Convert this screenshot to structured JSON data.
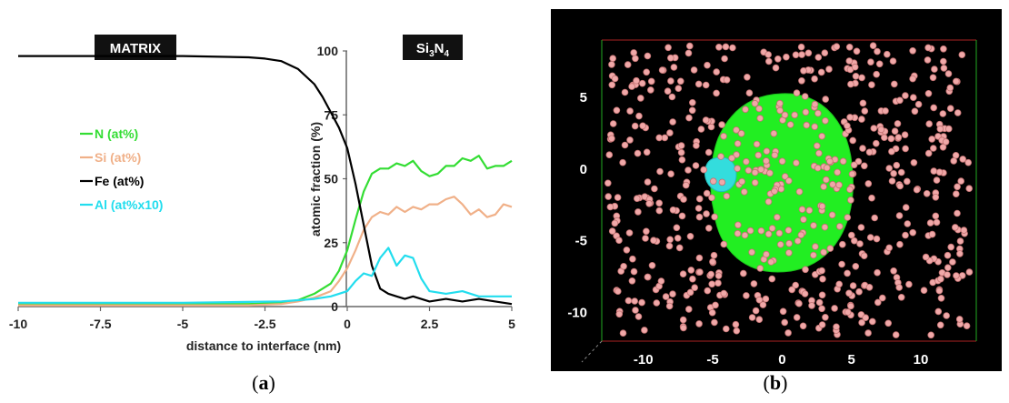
{
  "chart_data": [
    {
      "panel": "(a)",
      "type": "line",
      "xlabel": "distance to interface (nm)",
      "ylabel": "atomic fraction (%)",
      "xlim": [
        -10,
        5
      ],
      "ylim": [
        0,
        100
      ],
      "x_ticks": [
        "-10",
        "-7.5",
        "-5",
        "-2.5",
        "0",
        "2.5",
        "5"
      ],
      "y_ticks": [
        "0",
        "25",
        "50",
        "75",
        "100"
      ],
      "grid": false,
      "legend_position": "left",
      "region_labels": {
        "left": "MATRIX",
        "right_main": "Si",
        "right_sub1": "3",
        "right_mid": "N",
        "right_sub2": "4"
      },
      "series": [
        {
          "name": "N (at%)",
          "color": "#33dd33",
          "x": [
            -10,
            -5,
            -3,
            -2,
            -1.5,
            -1,
            -0.5,
            -0.25,
            0,
            0.25,
            0.5,
            0.75,
            1,
            1.25,
            1.5,
            1.75,
            2,
            2.25,
            2.5,
            2.75,
            3,
            3.25,
            3.5,
            3.75,
            4,
            4.25,
            4.5,
            4.75,
            5
          ],
          "y": [
            1,
            1,
            1,
            1.5,
            2.5,
            5,
            9,
            14,
            22,
            34,
            45,
            52,
            54,
            54,
            56,
            55,
            57,
            53,
            51,
            52,
            55,
            55,
            58,
            57,
            59,
            54,
            55,
            55,
            57
          ]
        },
        {
          "name": "Si (at%)",
          "color": "#f0b088",
          "x": [
            -10,
            -5,
            -3,
            -2,
            -1.5,
            -1,
            -0.5,
            -0.25,
            0,
            0.25,
            0.5,
            0.75,
            1,
            1.25,
            1.5,
            1.75,
            2,
            2.25,
            2.5,
            2.75,
            3,
            3.25,
            3.5,
            3.75,
            4,
            4.25,
            4.5,
            4.75,
            5
          ],
          "y": [
            0.5,
            0.5,
            0.5,
            1,
            2,
            3.5,
            6,
            10,
            15,
            22,
            30,
            35,
            37,
            36,
            39,
            37,
            39,
            38,
            40,
            40,
            42,
            43,
            40,
            36,
            38,
            35,
            36,
            40,
            39
          ]
        },
        {
          "name": "Fe (at%)",
          "color": "#000000",
          "x": [
            -10,
            -7.5,
            -5,
            -3,
            -2.5,
            -2,
            -1.5,
            -1,
            -0.75,
            -0.5,
            -0.25,
            0,
            0.25,
            0.5,
            0.75,
            1,
            1.25,
            1.5,
            1.75,
            2,
            2.5,
            3,
            3.5,
            4,
            4.5,
            5
          ],
          "y": [
            98,
            98,
            98,
            97.5,
            97,
            96,
            93,
            87,
            82,
            76,
            70,
            62,
            48,
            32,
            16,
            7,
            5,
            4,
            3,
            4,
            2,
            3,
            2,
            3,
            2,
            1
          ]
        },
        {
          "name": "Al (at%x10)",
          "color": "#22ddee",
          "x": [
            -10,
            -5,
            -2,
            -1,
            -0.5,
            0,
            0.25,
            0.5,
            0.75,
            1,
            1.25,
            1.5,
            1.75,
            2,
            2.25,
            2.5,
            3,
            3.5,
            4,
            4.5,
            5
          ],
          "y": [
            1.5,
            1.5,
            2,
            3,
            4,
            6,
            10,
            13,
            12,
            19,
            23,
            16,
            20,
            19,
            11,
            6,
            5,
            6,
            4,
            4,
            4
          ]
        }
      ]
    },
    {
      "panel": "(b)",
      "type": "scatter",
      "xlim": [
        -13,
        14
      ],
      "ylim": [
        -12,
        9
      ],
      "x_ticks": [
        "-10",
        "-5",
        "0",
        "5",
        "10"
      ],
      "y_ticks": [
        "5",
        "0",
        "-5",
        "-10"
      ],
      "background": "#000000",
      "point_color": "#f0a8a8",
      "precipitate_color": "#22ee22",
      "cluster_color": "#33dddd"
    }
  ]
}
